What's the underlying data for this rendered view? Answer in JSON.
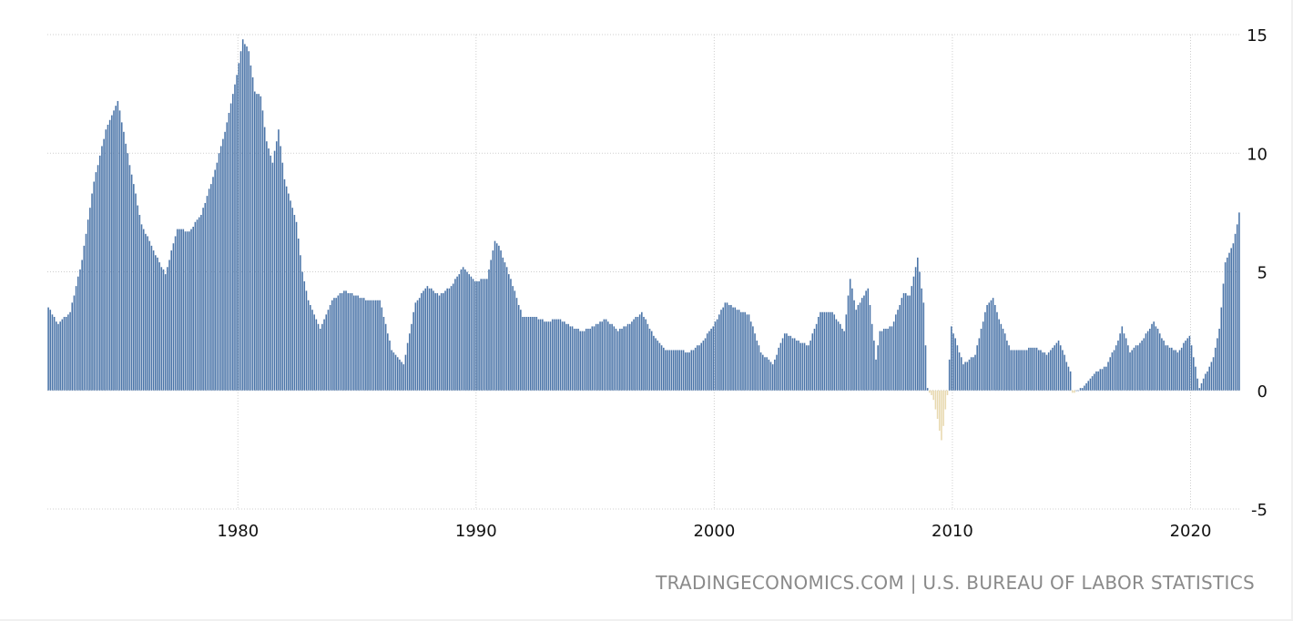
{
  "chart_data": {
    "type": "bar",
    "title": "",
    "xlabel": "",
    "ylabel": "",
    "frequency": "monthly",
    "x_start": "1972-01",
    "x_end": "2022-01",
    "xlim": [
      "1972-01",
      "2022-02"
    ],
    "ylim": [
      -5,
      15
    ],
    "y_ticks": [
      15,
      10,
      5,
      0,
      -5
    ],
    "x_ticks": [
      "1980",
      "1990",
      "2000",
      "2010",
      "2020"
    ],
    "grid": true,
    "y_axis_side": "right",
    "colors": {
      "positive": "#4a74a8",
      "negative": "#e8d9b0"
    },
    "anchors": [
      [
        "1972-01",
        3.5
      ],
      [
        "1972-06",
        2.8
      ],
      [
        "1972-12",
        3.3
      ],
      [
        "1973-06",
        5.5
      ],
      [
        "1973-12",
        8.8
      ],
      [
        "1974-06",
        11.0
      ],
      [
        "1974-12",
        12.2
      ],
      [
        "1975-06",
        9.5
      ],
      [
        "1975-12",
        7.0
      ],
      [
        "1976-06",
        5.9
      ],
      [
        "1976-12",
        4.9
      ],
      [
        "1977-06",
        6.8
      ],
      [
        "1977-12",
        6.7
      ],
      [
        "1978-06",
        7.4
      ],
      [
        "1978-12",
        9.0
      ],
      [
        "1979-06",
        10.9
      ],
      [
        "1979-12",
        13.3
      ],
      [
        "1980-03",
        14.8
      ],
      [
        "1980-06",
        14.3
      ],
      [
        "1980-09",
        12.6
      ],
      [
        "1980-12",
        12.4
      ],
      [
        "1981-03",
        10.5
      ],
      [
        "1981-06",
        9.6
      ],
      [
        "1981-09",
        11.0
      ],
      [
        "1981-12",
        8.9
      ],
      [
        "1982-06",
        7.1
      ],
      [
        "1982-09",
        5.0
      ],
      [
        "1982-12",
        3.8
      ],
      [
        "1983-06",
        2.6
      ],
      [
        "1983-12",
        3.8
      ],
      [
        "1984-06",
        4.2
      ],
      [
        "1984-12",
        4.0
      ],
      [
        "1985-06",
        3.8
      ],
      [
        "1985-12",
        3.8
      ],
      [
        "1986-06",
        1.7
      ],
      [
        "1986-12",
        1.1
      ],
      [
        "1987-06",
        3.7
      ],
      [
        "1987-12",
        4.4
      ],
      [
        "1988-06",
        4.0
      ],
      [
        "1988-12",
        4.4
      ],
      [
        "1989-06",
        5.2
      ],
      [
        "1989-12",
        4.6
      ],
      [
        "1990-06",
        4.7
      ],
      [
        "1990-10",
        6.3
      ],
      [
        "1990-12",
        6.1
      ],
      [
        "1991-06",
        4.7
      ],
      [
        "1991-12",
        3.1
      ],
      [
        "1992-06",
        3.1
      ],
      [
        "1992-12",
        2.9
      ],
      [
        "1993-06",
        3.0
      ],
      [
        "1993-12",
        2.7
      ],
      [
        "1994-06",
        2.5
      ],
      [
        "1994-12",
        2.7
      ],
      [
        "1995-06",
        3.0
      ],
      [
        "1995-12",
        2.5
      ],
      [
        "1996-06",
        2.8
      ],
      [
        "1996-12",
        3.3
      ],
      [
        "1997-06",
        2.3
      ],
      [
        "1997-12",
        1.7
      ],
      [
        "1998-06",
        1.7
      ],
      [
        "1998-12",
        1.6
      ],
      [
        "1999-06",
        2.0
      ],
      [
        "1999-12",
        2.7
      ],
      [
        "2000-06",
        3.7
      ],
      [
        "2000-12",
        3.4
      ],
      [
        "2001-06",
        3.2
      ],
      [
        "2001-12",
        1.6
      ],
      [
        "2002-06",
        1.1
      ],
      [
        "2002-12",
        2.4
      ],
      [
        "2003-06",
        2.1
      ],
      [
        "2003-12",
        1.9
      ],
      [
        "2004-06",
        3.3
      ],
      [
        "2004-12",
        3.3
      ],
      [
        "2005-06",
        2.5
      ],
      [
        "2005-09",
        4.7
      ],
      [
        "2005-12",
        3.4
      ],
      [
        "2006-06",
        4.3
      ],
      [
        "2006-10",
        1.3
      ],
      [
        "2006-12",
        2.5
      ],
      [
        "2007-06",
        2.7
      ],
      [
        "2007-12",
        4.1
      ],
      [
        "2008-03",
        4.0
      ],
      [
        "2008-07",
        5.6
      ],
      [
        "2008-10",
        3.7
      ],
      [
        "2008-12",
        0.1
      ],
      [
        "2009-03",
        -0.4
      ],
      [
        "2009-07",
        -2.1
      ],
      [
        "2009-10",
        -0.2
      ],
      [
        "2009-12",
        2.7
      ],
      [
        "2010-06",
        1.1
      ],
      [
        "2010-12",
        1.5
      ],
      [
        "2011-06",
        3.6
      ],
      [
        "2011-09",
        3.9
      ],
      [
        "2011-12",
        3.0
      ],
      [
        "2012-06",
        1.7
      ],
      [
        "2012-12",
        1.7
      ],
      [
        "2013-06",
        1.8
      ],
      [
        "2013-12",
        1.5
      ],
      [
        "2014-06",
        2.1
      ],
      [
        "2014-12",
        0.8
      ],
      [
        "2015-01",
        -0.1
      ],
      [
        "2015-06",
        0.1
      ],
      [
        "2015-12",
        0.7
      ],
      [
        "2016-06",
        1.0
      ],
      [
        "2016-12",
        2.1
      ],
      [
        "2017-02",
        2.7
      ],
      [
        "2017-06",
        1.6
      ],
      [
        "2017-12",
        2.1
      ],
      [
        "2018-06",
        2.9
      ],
      [
        "2018-12",
        1.9
      ],
      [
        "2019-06",
        1.6
      ],
      [
        "2019-12",
        2.3
      ],
      [
        "2020-05",
        0.1
      ],
      [
        "2020-12",
        1.4
      ],
      [
        "2021-03",
        2.6
      ],
      [
        "2021-06",
        5.4
      ],
      [
        "2021-10",
        6.2
      ],
      [
        "2021-12",
        7.0
      ],
      [
        "2022-01",
        7.5
      ]
    ]
  },
  "source_credit": "TRADINGECONOMICS.COM | U.S. BUREAU OF LABOR STATISTICS"
}
